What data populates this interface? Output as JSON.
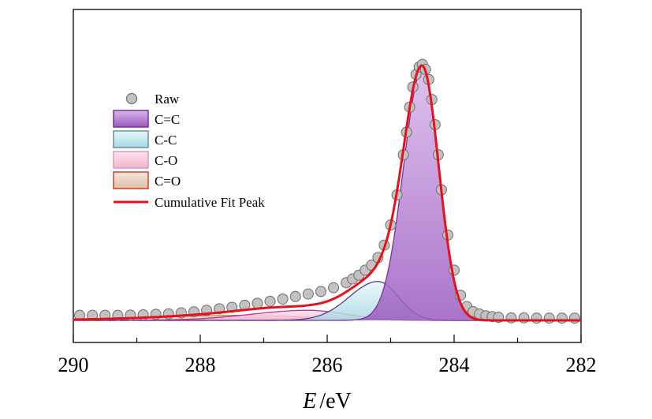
{
  "chart_data": {
    "type": "area",
    "xlabel_italic": "E",
    "xlabel_unit": "/eV",
    "x_reversed": true,
    "xlim": [
      290,
      282
    ],
    "xticks": [
      "290",
      "288",
      "286",
      "284",
      "282"
    ],
    "y_ticks_shown": false,
    "legend_position": "upper-left",
    "legend": [
      "Raw",
      "C=C",
      "C-C",
      "C-O",
      "C=O",
      "Cumulative Fit Peak"
    ],
    "colors": {
      "raw_fill": "#c2c2c2",
      "raw_edge": "#6e6e6e",
      "cc_double": "#b57fd0",
      "cc_double_edge": "#7a2f9a",
      "cc_single": "#bfe6ec",
      "cc_single_edge": "#5a3a8a",
      "co_single": "#f4c8dc",
      "co_single_edge": "#c0309a",
      "co_double": "#e8cfc0",
      "co_double_edge": "#b08a30",
      "cumulative": "#e8101a"
    },
    "components": [
      {
        "name": "C=C",
        "center_eV": 284.5,
        "height": 1.0,
        "sigma_left": 0.3,
        "sigma_right": 0.26
      },
      {
        "name": "C-C",
        "center_eV": 285.2,
        "height": 0.155,
        "sigma_left": 0.45,
        "sigma_right": 0.32
      },
      {
        "name": "C-O",
        "center_eV": 286.3,
        "height": 0.04,
        "sigma_left": 0.9,
        "sigma_right": 0.6
      },
      {
        "name": "C=O",
        "center_eV": 287.3,
        "height": 0.02,
        "sigma_left": 1.4,
        "sigma_right": 1.0
      }
    ],
    "raw": {
      "x_eV": [
        289.9,
        289.7,
        289.5,
        289.3,
        289.1,
        288.9,
        288.7,
        288.5,
        288.3,
        288.1,
        287.9,
        287.7,
        287.5,
        287.3,
        287.1,
        286.9,
        286.7,
        286.5,
        286.3,
        286.1,
        285.9,
        285.7,
        285.6,
        285.5,
        285.4,
        285.3,
        285.2,
        285.1,
        285.0,
        284.9,
        284.8,
        284.75,
        284.7,
        284.65,
        284.6,
        284.55,
        284.5,
        284.45,
        284.4,
        284.35,
        284.3,
        284.25,
        284.2,
        284.1,
        284.0,
        283.9,
        283.8,
        283.7,
        283.6,
        283.5,
        283.4,
        283.3,
        283.1,
        282.9,
        282.7,
        282.5,
        282.3,
        282.1
      ],
      "intensity": [
        0.02,
        0.02,
        0.02,
        0.02,
        0.021,
        0.022,
        0.024,
        0.026,
        0.03,
        0.034,
        0.04,
        0.046,
        0.052,
        0.06,
        0.068,
        0.076,
        0.085,
        0.095,
        0.105,
        0.115,
        0.13,
        0.15,
        0.165,
        0.18,
        0.2,
        0.22,
        0.25,
        0.3,
        0.38,
        0.5,
        0.66,
        0.75,
        0.85,
        0.93,
        0.98,
        1.01,
        1.02,
        1.0,
        0.96,
        0.88,
        0.78,
        0.66,
        0.52,
        0.34,
        0.2,
        0.1,
        0.055,
        0.035,
        0.025,
        0.018,
        0.015,
        0.012,
        0.01,
        0.01,
        0.009,
        0.009,
        0.009,
        0.009
      ]
    }
  }
}
